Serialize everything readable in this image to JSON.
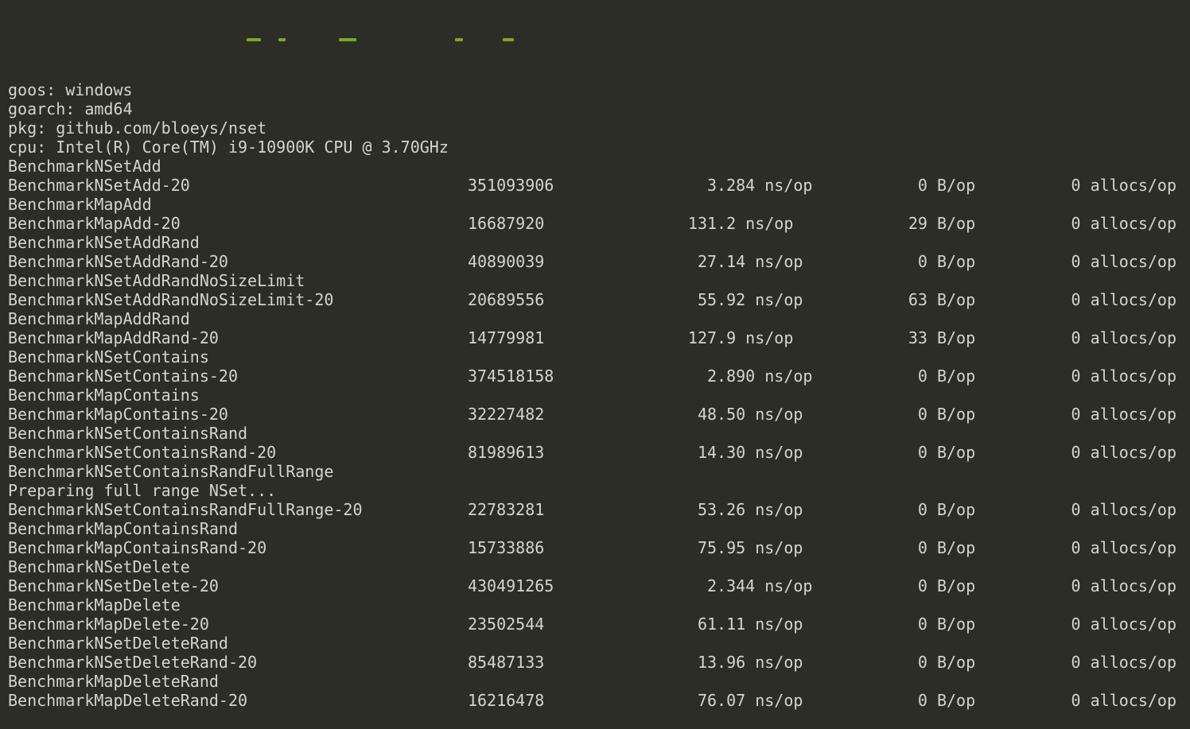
{
  "colors": {
    "background": "#2b2d26",
    "foreground": "#d4d5cd",
    "command_green": "#7aa823"
  },
  "terminal": {
    "header_lines": [
      "goos: windows",
      "goarch: amd64",
      "pkg: github.com/bloeys/nset",
      "cpu: Intel(R) Core(TM) i9-10900K CPU @ 3.70GHz"
    ],
    "units": {
      "time": "ns/op",
      "bytes": "B/op",
      "allocs": "allocs/op"
    },
    "rows": [
      {
        "type": "label",
        "text": "BenchmarkNSetAdd"
      },
      {
        "type": "result",
        "name": "BenchmarkNSetAdd-20",
        "iterations": "351093906",
        "ns_per_op": "3.284",
        "bytes_per_op": "0",
        "allocs_per_op": "0"
      },
      {
        "type": "label",
        "text": "BenchmarkMapAdd"
      },
      {
        "type": "result",
        "name": "BenchmarkMapAdd-20",
        "iterations": "16687920",
        "ns_per_op": "131.2",
        "bytes_per_op": "29",
        "allocs_per_op": "0"
      },
      {
        "type": "label",
        "text": "BenchmarkNSetAddRand"
      },
      {
        "type": "result",
        "name": "BenchmarkNSetAddRand-20",
        "iterations": "40890039",
        "ns_per_op": "27.14",
        "bytes_per_op": "0",
        "allocs_per_op": "0"
      },
      {
        "type": "label",
        "text": "BenchmarkNSetAddRandNoSizeLimit"
      },
      {
        "type": "result",
        "name": "BenchmarkNSetAddRandNoSizeLimit-20",
        "iterations": "20689556",
        "ns_per_op": "55.92",
        "bytes_per_op": "63",
        "allocs_per_op": "0"
      },
      {
        "type": "label",
        "text": "BenchmarkMapAddRand"
      },
      {
        "type": "result",
        "name": "BenchmarkMapAddRand-20",
        "iterations": "14779981",
        "ns_per_op": "127.9",
        "bytes_per_op": "33",
        "allocs_per_op": "0"
      },
      {
        "type": "label",
        "text": "BenchmarkNSetContains"
      },
      {
        "type": "result",
        "name": "BenchmarkNSetContains-20",
        "iterations": "374518158",
        "ns_per_op": "2.890",
        "bytes_per_op": "0",
        "allocs_per_op": "0"
      },
      {
        "type": "label",
        "text": "BenchmarkMapContains"
      },
      {
        "type": "result",
        "name": "BenchmarkMapContains-20",
        "iterations": "32227482",
        "ns_per_op": "48.50",
        "bytes_per_op": "0",
        "allocs_per_op": "0"
      },
      {
        "type": "label",
        "text": "BenchmarkNSetContainsRand"
      },
      {
        "type": "result",
        "name": "BenchmarkNSetContainsRand-20",
        "iterations": "81989613",
        "ns_per_op": "14.30",
        "bytes_per_op": "0",
        "allocs_per_op": "0"
      },
      {
        "type": "label",
        "text": "BenchmarkNSetContainsRandFullRange"
      },
      {
        "type": "status",
        "text": "Preparing full range NSet..."
      },
      {
        "type": "result",
        "name": "BenchmarkNSetContainsRandFullRange-20",
        "iterations": "22783281",
        "ns_per_op": "53.26",
        "bytes_per_op": "0",
        "allocs_per_op": "0"
      },
      {
        "type": "label",
        "text": "BenchmarkMapContainsRand"
      },
      {
        "type": "result",
        "name": "BenchmarkMapContainsRand-20",
        "iterations": "15733886",
        "ns_per_op": "75.95",
        "bytes_per_op": "0",
        "allocs_per_op": "0"
      },
      {
        "type": "label",
        "text": "BenchmarkNSetDelete"
      },
      {
        "type": "result",
        "name": "BenchmarkNSetDelete-20",
        "iterations": "430491265",
        "ns_per_op": "2.344",
        "bytes_per_op": "0",
        "allocs_per_op": "0"
      },
      {
        "type": "label",
        "text": "BenchmarkMapDelete"
      },
      {
        "type": "result",
        "name": "BenchmarkMapDelete-20",
        "iterations": "23502544",
        "ns_per_op": "61.11",
        "bytes_per_op": "0",
        "allocs_per_op": "0"
      },
      {
        "type": "label",
        "text": "BenchmarkNSetDeleteRand"
      },
      {
        "type": "result",
        "name": "BenchmarkNSetDeleteRand-20",
        "iterations": "85487133",
        "ns_per_op": "13.96",
        "bytes_per_op": "0",
        "allocs_per_op": "0"
      },
      {
        "type": "label",
        "text": "BenchmarkMapDeleteRand"
      },
      {
        "type": "result",
        "name": "BenchmarkMapDeleteRand-20",
        "iterations": "16216478",
        "ns_per_op": "76.07",
        "bytes_per_op": "0",
        "allocs_per_op": "0"
      }
    ]
  }
}
